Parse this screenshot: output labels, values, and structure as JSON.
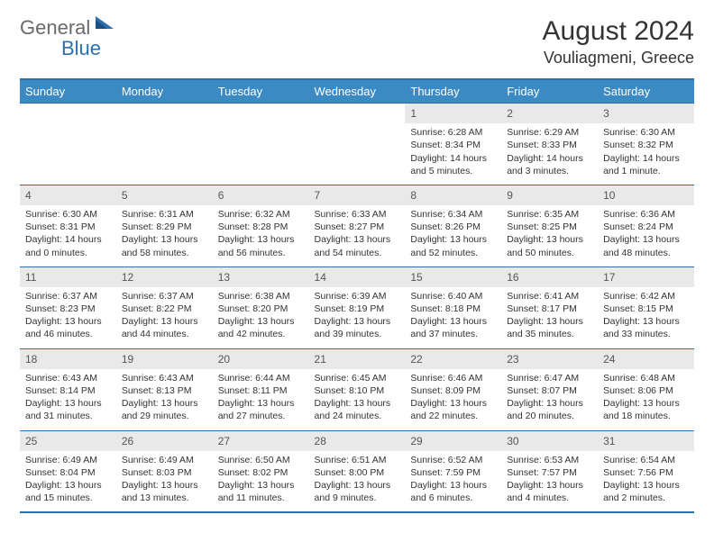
{
  "logo": {
    "general": "General",
    "blue": "Blue"
  },
  "title": "August 2024",
  "location": "Vouliagmeni, Greece",
  "colors": {
    "header_bg": "#3b8ac4",
    "header_text": "#ffffff",
    "border": "#2d6fb0",
    "daynum_bg": "#e9e9e9",
    "text": "#333333",
    "logo_gray": "#6a6a6a",
    "logo_blue": "#2d6fb0"
  },
  "weekdays": [
    "Sunday",
    "Monday",
    "Tuesday",
    "Wednesday",
    "Thursday",
    "Friday",
    "Saturday"
  ],
  "weeks": [
    [
      {
        "empty": true
      },
      {
        "empty": true
      },
      {
        "empty": true
      },
      {
        "empty": true
      },
      {
        "day": "1",
        "sunrise": "Sunrise: 6:28 AM",
        "sunset": "Sunset: 8:34 PM",
        "daylight1": "Daylight: 14 hours",
        "daylight2": "and 5 minutes."
      },
      {
        "day": "2",
        "sunrise": "Sunrise: 6:29 AM",
        "sunset": "Sunset: 8:33 PM",
        "daylight1": "Daylight: 14 hours",
        "daylight2": "and 3 minutes."
      },
      {
        "day": "3",
        "sunrise": "Sunrise: 6:30 AM",
        "sunset": "Sunset: 8:32 PM",
        "daylight1": "Daylight: 14 hours",
        "daylight2": "and 1 minute."
      }
    ],
    [
      {
        "day": "4",
        "sunrise": "Sunrise: 6:30 AM",
        "sunset": "Sunset: 8:31 PM",
        "daylight1": "Daylight: 14 hours",
        "daylight2": "and 0 minutes."
      },
      {
        "day": "5",
        "sunrise": "Sunrise: 6:31 AM",
        "sunset": "Sunset: 8:29 PM",
        "daylight1": "Daylight: 13 hours",
        "daylight2": "and 58 minutes."
      },
      {
        "day": "6",
        "sunrise": "Sunrise: 6:32 AM",
        "sunset": "Sunset: 8:28 PM",
        "daylight1": "Daylight: 13 hours",
        "daylight2": "and 56 minutes."
      },
      {
        "day": "7",
        "sunrise": "Sunrise: 6:33 AM",
        "sunset": "Sunset: 8:27 PM",
        "daylight1": "Daylight: 13 hours",
        "daylight2": "and 54 minutes."
      },
      {
        "day": "8",
        "sunrise": "Sunrise: 6:34 AM",
        "sunset": "Sunset: 8:26 PM",
        "daylight1": "Daylight: 13 hours",
        "daylight2": "and 52 minutes."
      },
      {
        "day": "9",
        "sunrise": "Sunrise: 6:35 AM",
        "sunset": "Sunset: 8:25 PM",
        "daylight1": "Daylight: 13 hours",
        "daylight2": "and 50 minutes."
      },
      {
        "day": "10",
        "sunrise": "Sunrise: 6:36 AM",
        "sunset": "Sunset: 8:24 PM",
        "daylight1": "Daylight: 13 hours",
        "daylight2": "and 48 minutes."
      }
    ],
    [
      {
        "day": "11",
        "sunrise": "Sunrise: 6:37 AM",
        "sunset": "Sunset: 8:23 PM",
        "daylight1": "Daylight: 13 hours",
        "daylight2": "and 46 minutes."
      },
      {
        "day": "12",
        "sunrise": "Sunrise: 6:37 AM",
        "sunset": "Sunset: 8:22 PM",
        "daylight1": "Daylight: 13 hours",
        "daylight2": "and 44 minutes."
      },
      {
        "day": "13",
        "sunrise": "Sunrise: 6:38 AM",
        "sunset": "Sunset: 8:20 PM",
        "daylight1": "Daylight: 13 hours",
        "daylight2": "and 42 minutes."
      },
      {
        "day": "14",
        "sunrise": "Sunrise: 6:39 AM",
        "sunset": "Sunset: 8:19 PM",
        "daylight1": "Daylight: 13 hours",
        "daylight2": "and 39 minutes."
      },
      {
        "day": "15",
        "sunrise": "Sunrise: 6:40 AM",
        "sunset": "Sunset: 8:18 PM",
        "daylight1": "Daylight: 13 hours",
        "daylight2": "and 37 minutes."
      },
      {
        "day": "16",
        "sunrise": "Sunrise: 6:41 AM",
        "sunset": "Sunset: 8:17 PM",
        "daylight1": "Daylight: 13 hours",
        "daylight2": "and 35 minutes."
      },
      {
        "day": "17",
        "sunrise": "Sunrise: 6:42 AM",
        "sunset": "Sunset: 8:15 PM",
        "daylight1": "Daylight: 13 hours",
        "daylight2": "and 33 minutes."
      }
    ],
    [
      {
        "day": "18",
        "sunrise": "Sunrise: 6:43 AM",
        "sunset": "Sunset: 8:14 PM",
        "daylight1": "Daylight: 13 hours",
        "daylight2": "and 31 minutes."
      },
      {
        "day": "19",
        "sunrise": "Sunrise: 6:43 AM",
        "sunset": "Sunset: 8:13 PM",
        "daylight1": "Daylight: 13 hours",
        "daylight2": "and 29 minutes."
      },
      {
        "day": "20",
        "sunrise": "Sunrise: 6:44 AM",
        "sunset": "Sunset: 8:11 PM",
        "daylight1": "Daylight: 13 hours",
        "daylight2": "and 27 minutes."
      },
      {
        "day": "21",
        "sunrise": "Sunrise: 6:45 AM",
        "sunset": "Sunset: 8:10 PM",
        "daylight1": "Daylight: 13 hours",
        "daylight2": "and 24 minutes."
      },
      {
        "day": "22",
        "sunrise": "Sunrise: 6:46 AM",
        "sunset": "Sunset: 8:09 PM",
        "daylight1": "Daylight: 13 hours",
        "daylight2": "and 22 minutes."
      },
      {
        "day": "23",
        "sunrise": "Sunrise: 6:47 AM",
        "sunset": "Sunset: 8:07 PM",
        "daylight1": "Daylight: 13 hours",
        "daylight2": "and 20 minutes."
      },
      {
        "day": "24",
        "sunrise": "Sunrise: 6:48 AM",
        "sunset": "Sunset: 8:06 PM",
        "daylight1": "Daylight: 13 hours",
        "daylight2": "and 18 minutes."
      }
    ],
    [
      {
        "day": "25",
        "sunrise": "Sunrise: 6:49 AM",
        "sunset": "Sunset: 8:04 PM",
        "daylight1": "Daylight: 13 hours",
        "daylight2": "and 15 minutes."
      },
      {
        "day": "26",
        "sunrise": "Sunrise: 6:49 AM",
        "sunset": "Sunset: 8:03 PM",
        "daylight1": "Daylight: 13 hours",
        "daylight2": "and 13 minutes."
      },
      {
        "day": "27",
        "sunrise": "Sunrise: 6:50 AM",
        "sunset": "Sunset: 8:02 PM",
        "daylight1": "Daylight: 13 hours",
        "daylight2": "and 11 minutes."
      },
      {
        "day": "28",
        "sunrise": "Sunrise: 6:51 AM",
        "sunset": "Sunset: 8:00 PM",
        "daylight1": "Daylight: 13 hours",
        "daylight2": "and 9 minutes."
      },
      {
        "day": "29",
        "sunrise": "Sunrise: 6:52 AM",
        "sunset": "Sunset: 7:59 PM",
        "daylight1": "Daylight: 13 hours",
        "daylight2": "and 6 minutes."
      },
      {
        "day": "30",
        "sunrise": "Sunrise: 6:53 AM",
        "sunset": "Sunset: 7:57 PM",
        "daylight1": "Daylight: 13 hours",
        "daylight2": "and 4 minutes."
      },
      {
        "day": "31",
        "sunrise": "Sunrise: 6:54 AM",
        "sunset": "Sunset: 7:56 PM",
        "daylight1": "Daylight: 13 hours",
        "daylight2": "and 2 minutes."
      }
    ]
  ]
}
